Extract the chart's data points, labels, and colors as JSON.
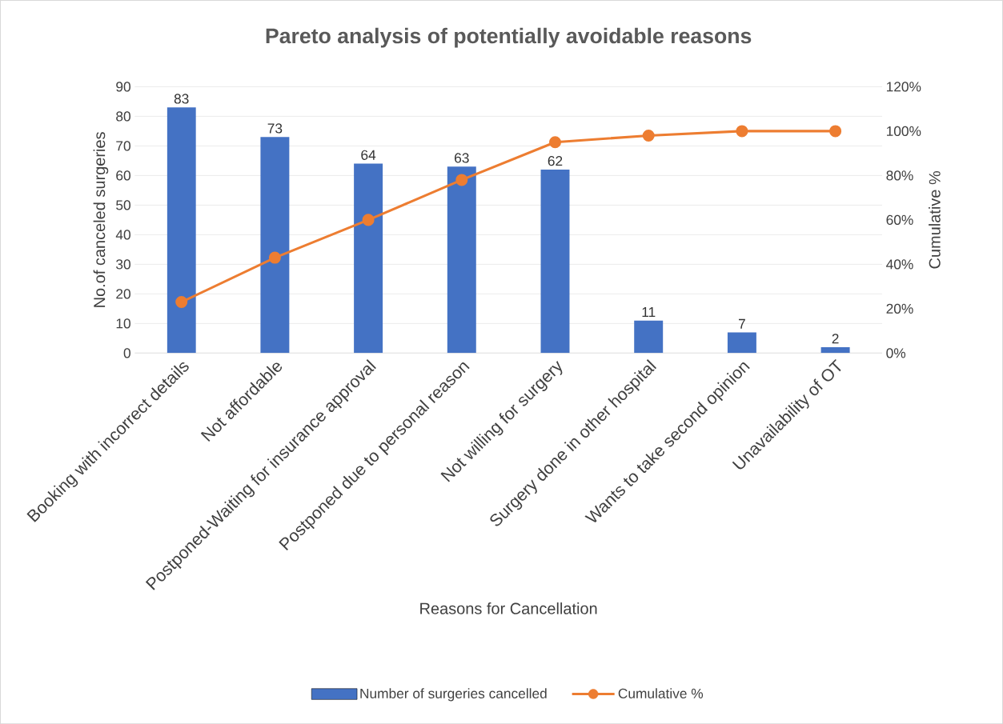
{
  "chart_data": {
    "type": "bar",
    "title": "Pareto analysis of potentially avoidable reasons",
    "xlabel": "Reasons for Cancellation",
    "ylabel": "No.of canceled surgeries",
    "y2label": "Cumulative %",
    "categories": [
      "Booking with incorrect details",
      "Not affordable",
      "Postponed-Waiting for insurance approval",
      "Postponed due to personal reason",
      "Not willing for surgery",
      "Surgery done in other hospital",
      "Wants to take second opinion",
      "Unavailability of OT"
    ],
    "series": [
      {
        "name": "Number of surgeries cancelled",
        "color": "#4472c4",
        "values": [
          83,
          73,
          64,
          63,
          62,
          11,
          7,
          2
        ],
        "value_labels": [
          "83",
          "73",
          "64",
          "63",
          "62",
          "11",
          "7",
          "2"
        ]
      },
      {
        "name": "Cumulative %",
        "type": "line",
        "axis": "y2",
        "color": "#ed7d31",
        "marker": "circle",
        "values": [
          23,
          43,
          60,
          78,
          95,
          98,
          100,
          100
        ]
      }
    ],
    "ylim": [
      0,
      90
    ],
    "yticks": [
      0,
      10,
      20,
      30,
      40,
      50,
      60,
      70,
      80,
      90
    ],
    "y2lim": [
      0,
      120
    ],
    "y2ticks": [
      {
        "value": 0,
        "label": "0%"
      },
      {
        "value": 20,
        "label": "20%"
      },
      {
        "value": 40,
        "label": "40%"
      },
      {
        "value": 60,
        "label": "60%"
      },
      {
        "value": 80,
        "label": "80%"
      },
      {
        "value": 100,
        "label": "100%"
      },
      {
        "value": 120,
        "label": "120%"
      }
    ],
    "grid": "y",
    "legend": "bottom"
  }
}
